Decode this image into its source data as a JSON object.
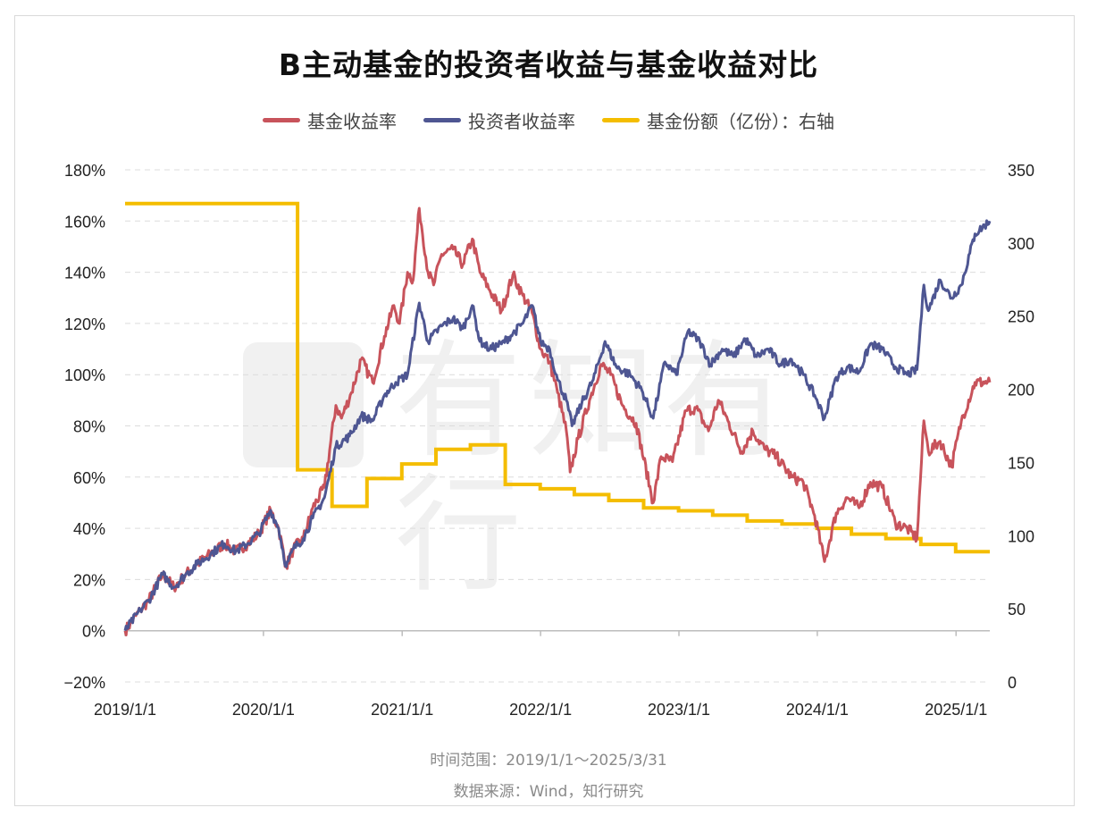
{
  "chart_title": "B主动基金的投资者收益与基金收益对比",
  "watermark_text": "有知有行",
  "legend": [
    {
      "label": "基金收益率",
      "color": "#C8535B"
    },
    {
      "label": "投资者收益率",
      "color": "#4E5692"
    },
    {
      "label": "基金份额（亿份）：右轴",
      "color": "#F4BD00"
    }
  ],
  "footnotes": {
    "time_range": "时间范围：2019/1/1～2025/3/31",
    "source": "数据来源：Wind，知行研究"
  },
  "chart_data": {
    "type": "line",
    "title": "B主动基金的投资者收益与基金收益对比",
    "x_tick_labels": [
      "2019/1/1",
      "2020/1/1",
      "2021/1/1",
      "2022/1/1",
      "2023/1/1",
      "2024/1/1",
      "2025/1/1"
    ],
    "x_range": [
      "2019-01-01",
      "2025-03-31"
    ],
    "y_left": {
      "ticks": [
        "180%",
        "160%",
        "140%",
        "120%",
        "100%",
        "80%",
        "60%",
        "40%",
        "20%",
        "0%",
        "−20%"
      ],
      "range": [
        -20,
        180
      ],
      "unit": "%"
    },
    "y_right": {
      "ticks": [
        "350",
        "300",
        "250",
        "200",
        "150",
        "100",
        "50",
        "0"
      ],
      "range": [
        0,
        350
      ],
      "label": "右轴"
    },
    "grid": true,
    "legend_position": "top",
    "series": [
      {
        "name": "基金收益率",
        "axis": "left",
        "color": "#C8535B",
        "points": [
          [
            "2019-01-01",
            0
          ],
          [
            "2019-02-10",
            8
          ],
          [
            "2019-03-05",
            12
          ],
          [
            "2019-04-10",
            22
          ],
          [
            "2019-05-10",
            17
          ],
          [
            "2019-06-10",
            22
          ],
          [
            "2019-07-10",
            26
          ],
          [
            "2019-08-15",
            30
          ],
          [
            "2019-09-20",
            34
          ],
          [
            "2019-10-20",
            31
          ],
          [
            "2019-11-20",
            34
          ],
          [
            "2019-12-20",
            38
          ],
          [
            "2020-01-20",
            47
          ],
          [
            "2020-02-10",
            40
          ],
          [
            "2020-03-01",
            25
          ],
          [
            "2020-03-20",
            32
          ],
          [
            "2020-04-15",
            36
          ],
          [
            "2020-05-10",
            48
          ],
          [
            "2020-06-10",
            56
          ],
          [
            "2020-07-10",
            88
          ],
          [
            "2020-07-25",
            83
          ],
          [
            "2020-08-20",
            93
          ],
          [
            "2020-09-15",
            106
          ],
          [
            "2020-10-15",
            97
          ],
          [
            "2020-11-15",
            115
          ],
          [
            "2020-12-10",
            127
          ],
          [
            "2020-12-25",
            120
          ],
          [
            "2021-01-15",
            140
          ],
          [
            "2021-01-30",
            137
          ],
          [
            "2021-02-15",
            165
          ],
          [
            "2021-03-10",
            140
          ],
          [
            "2021-03-25",
            135
          ],
          [
            "2021-04-15",
            147
          ],
          [
            "2021-05-15",
            149
          ],
          [
            "2021-06-10",
            143
          ],
          [
            "2021-07-05",
            153
          ],
          [
            "2021-07-25",
            140
          ],
          [
            "2021-08-20",
            133
          ],
          [
            "2021-09-20",
            125
          ],
          [
            "2021-10-20",
            139
          ],
          [
            "2021-11-15",
            131
          ],
          [
            "2021-12-10",
            124
          ],
          [
            "2022-01-01",
            110
          ],
          [
            "2022-01-25",
            105
          ],
          [
            "2022-02-15",
            93
          ],
          [
            "2022-03-10",
            78
          ],
          [
            "2022-03-20",
            62
          ],
          [
            "2022-04-10",
            75
          ],
          [
            "2022-05-10",
            90
          ],
          [
            "2022-06-10",
            104
          ],
          [
            "2022-07-05",
            100
          ],
          [
            "2022-08-05",
            88
          ],
          [
            "2022-09-10",
            81
          ],
          [
            "2022-10-25",
            50
          ],
          [
            "2022-11-15",
            68
          ],
          [
            "2022-12-15",
            66
          ],
          [
            "2023-01-20",
            86
          ],
          [
            "2023-02-15",
            87
          ],
          [
            "2023-03-20",
            78
          ],
          [
            "2023-04-15",
            90
          ],
          [
            "2023-05-10",
            82
          ],
          [
            "2023-06-15",
            70
          ],
          [
            "2023-07-15",
            78
          ],
          [
            "2023-08-15",
            71
          ],
          [
            "2023-09-15",
            68
          ],
          [
            "2023-10-25",
            60
          ],
          [
            "2023-11-25",
            58
          ],
          [
            "2023-12-25",
            45
          ],
          [
            "2024-01-20",
            27
          ],
          [
            "2024-02-20",
            46
          ],
          [
            "2024-03-20",
            52
          ],
          [
            "2024-04-20",
            48
          ],
          [
            "2024-05-20",
            58
          ],
          [
            "2024-06-20",
            56
          ],
          [
            "2024-07-25",
            42
          ],
          [
            "2024-08-25",
            40
          ],
          [
            "2024-09-20",
            36
          ],
          [
            "2024-10-08",
            82
          ],
          [
            "2024-10-20",
            70
          ],
          [
            "2024-11-20",
            74
          ],
          [
            "2024-12-20",
            64
          ],
          [
            "2025-01-15",
            82
          ],
          [
            "2025-02-20",
            97
          ],
          [
            "2025-03-31",
            97
          ]
        ]
      },
      {
        "name": "投资者收益率",
        "axis": "left",
        "color": "#4E5692",
        "points": [
          [
            "2019-01-01",
            0
          ],
          [
            "2019-02-10",
            8
          ],
          [
            "2019-03-05",
            12
          ],
          [
            "2019-04-10",
            22
          ],
          [
            "2019-05-10",
            17
          ],
          [
            "2019-06-10",
            22
          ],
          [
            "2019-07-10",
            26
          ],
          [
            "2019-08-15",
            30
          ],
          [
            "2019-09-20",
            34
          ],
          [
            "2019-10-20",
            31
          ],
          [
            "2019-11-20",
            34
          ],
          [
            "2019-12-20",
            38
          ],
          [
            "2020-01-20",
            47
          ],
          [
            "2020-02-10",
            40
          ],
          [
            "2020-03-01",
            25
          ],
          [
            "2020-03-20",
            32
          ],
          [
            "2020-04-15",
            36
          ],
          [
            "2020-05-10",
            44
          ],
          [
            "2020-06-10",
            52
          ],
          [
            "2020-07-10",
            72
          ],
          [
            "2020-08-15",
            76
          ],
          [
            "2020-09-15",
            84
          ],
          [
            "2020-10-15",
            82
          ],
          [
            "2020-11-15",
            92
          ],
          [
            "2020-12-15",
            97
          ],
          [
            "2021-01-15",
            100
          ],
          [
            "2021-02-15",
            128
          ],
          [
            "2021-03-10",
            113
          ],
          [
            "2021-04-15",
            119
          ],
          [
            "2021-05-15",
            122
          ],
          [
            "2021-06-10",
            118
          ],
          [
            "2021-07-05",
            127
          ],
          [
            "2021-07-25",
            113
          ],
          [
            "2021-08-20",
            110
          ],
          [
            "2021-09-20",
            112
          ],
          [
            "2021-10-20",
            116
          ],
          [
            "2021-11-15",
            120
          ],
          [
            "2021-12-10",
            127
          ],
          [
            "2022-01-01",
            113
          ],
          [
            "2022-01-25",
            110
          ],
          [
            "2022-02-15",
            98
          ],
          [
            "2022-03-10",
            90
          ],
          [
            "2022-03-25",
            80
          ],
          [
            "2022-04-20",
            89
          ],
          [
            "2022-05-20",
            98
          ],
          [
            "2022-06-20",
            113
          ],
          [
            "2022-07-20",
            103
          ],
          [
            "2022-08-25",
            100
          ],
          [
            "2022-09-25",
            94
          ],
          [
            "2022-10-25",
            83
          ],
          [
            "2022-11-25",
            105
          ],
          [
            "2022-12-25",
            100
          ],
          [
            "2023-01-25",
            117
          ],
          [
            "2023-02-25",
            113
          ],
          [
            "2023-03-25",
            104
          ],
          [
            "2023-04-25",
            110
          ],
          [
            "2023-05-25",
            107
          ],
          [
            "2023-06-25",
            114
          ],
          [
            "2023-07-25",
            107
          ],
          [
            "2023-08-25",
            110
          ],
          [
            "2023-09-25",
            104
          ],
          [
            "2023-10-25",
            106
          ],
          [
            "2023-11-25",
            100
          ],
          [
            "2023-12-25",
            92
          ],
          [
            "2024-01-20",
            83
          ],
          [
            "2024-02-20",
            99
          ],
          [
            "2024-03-20",
            103
          ],
          [
            "2024-04-20",
            101
          ],
          [
            "2024-05-20",
            112
          ],
          [
            "2024-06-20",
            110
          ],
          [
            "2024-07-25",
            103
          ],
          [
            "2024-08-25",
            100
          ],
          [
            "2024-09-20",
            102
          ],
          [
            "2024-10-08",
            135
          ],
          [
            "2024-10-20",
            125
          ],
          [
            "2024-11-20",
            137
          ],
          [
            "2024-12-20",
            130
          ],
          [
            "2025-01-15",
            135
          ],
          [
            "2025-02-20",
            155
          ],
          [
            "2025-03-31",
            160
          ]
        ]
      },
      {
        "name": "基金份额（亿份）",
        "axis": "right",
        "color": "#F4BD00",
        "step": true,
        "points": [
          [
            "2019-01-01",
            327
          ],
          [
            "2020-03-31",
            327
          ],
          [
            "2020-03-31",
            145
          ],
          [
            "2020-06-30",
            145
          ],
          [
            "2020-06-30",
            120
          ],
          [
            "2020-09-30",
            120
          ],
          [
            "2020-09-30",
            139
          ],
          [
            "2020-12-31",
            139
          ],
          [
            "2020-12-31",
            149
          ],
          [
            "2021-03-31",
            149
          ],
          [
            "2021-03-31",
            159
          ],
          [
            "2021-06-30",
            159
          ],
          [
            "2021-06-30",
            162
          ],
          [
            "2021-09-30",
            162
          ],
          [
            "2021-09-30",
            135
          ],
          [
            "2021-12-31",
            135
          ],
          [
            "2021-12-31",
            132
          ],
          [
            "2022-03-31",
            132
          ],
          [
            "2022-03-31",
            128
          ],
          [
            "2022-06-30",
            128
          ],
          [
            "2022-06-30",
            124
          ],
          [
            "2022-09-30",
            124
          ],
          [
            "2022-09-30",
            119
          ],
          [
            "2022-12-31",
            119
          ],
          [
            "2022-12-31",
            117
          ],
          [
            "2023-03-31",
            117
          ],
          [
            "2023-03-31",
            114
          ],
          [
            "2023-06-30",
            114
          ],
          [
            "2023-06-30",
            110
          ],
          [
            "2023-09-30",
            110
          ],
          [
            "2023-09-30",
            108
          ],
          [
            "2023-12-31",
            108
          ],
          [
            "2023-12-31",
            105
          ],
          [
            "2024-03-31",
            105
          ],
          [
            "2024-03-31",
            101
          ],
          [
            "2024-06-30",
            101
          ],
          [
            "2024-06-30",
            98
          ],
          [
            "2024-09-30",
            98
          ],
          [
            "2024-09-30",
            94
          ],
          [
            "2024-12-31",
            94
          ],
          [
            "2024-12-31",
            89
          ],
          [
            "2025-03-31",
            89
          ]
        ]
      }
    ]
  }
}
